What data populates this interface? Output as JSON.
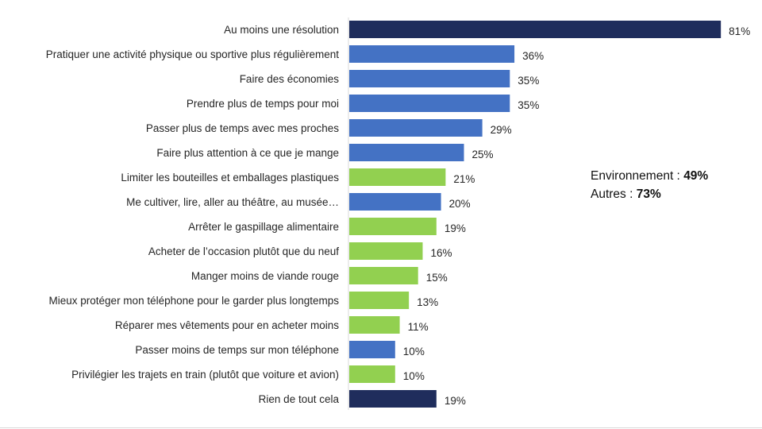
{
  "chart_data": {
    "type": "bar",
    "orientation": "horizontal",
    "categories": [
      "Au moins une résolution",
      "Pratiquer une activité physique ou sportive plus régulièrement",
      "Faire des économies",
      "Prendre plus de temps pour moi",
      "Passer plus de temps avec mes proches",
      "Faire plus attention à ce que je mange",
      "Limiter les bouteilles et emballages plastiques",
      "Me cultiver, lire, aller au théâtre, au musée…",
      "Arrêter le gaspillage alimentaire",
      "Acheter de l’occasion plutôt que du neuf",
      "Manger moins de viande rouge",
      "Mieux protéger mon téléphone pour le garder plus longtemps",
      "Réparer mes vêtements pour en acheter moins",
      "Passer moins de temps sur mon téléphone",
      "Privilégier les trajets en train (plutôt que voiture et avion)",
      "Rien de tout cela"
    ],
    "values": [
      81,
      36,
      35,
      35,
      29,
      25,
      21,
      20,
      19,
      16,
      15,
      13,
      11,
      10,
      10,
      19
    ],
    "value_labels": [
      "81%",
      "36%",
      "35%",
      "35%",
      "29%",
      "25%",
      "21%",
      "20%",
      "19%",
      "16%",
      "15%",
      "13%",
      "11%",
      "10%",
      "10%",
      "19%"
    ],
    "groups": [
      "total",
      "autres",
      "autres",
      "autres",
      "autres",
      "autres",
      "environnement",
      "autres",
      "environnement",
      "environnement",
      "environnement",
      "environnement",
      "environnement",
      "autres",
      "environnement",
      "total"
    ],
    "group_colors": {
      "total": "#1f2d5c",
      "autres": "#4472c4",
      "environnement": "#92d050"
    },
    "xlim": [
      0,
      100
    ],
    "grid": false,
    "title": "",
    "xlabel": "",
    "ylabel": ""
  },
  "legend": {
    "environnement_label": "Environnement : ",
    "environnement_value": "49%",
    "autres_label": "Autres : ",
    "autres_value": "73%"
  }
}
